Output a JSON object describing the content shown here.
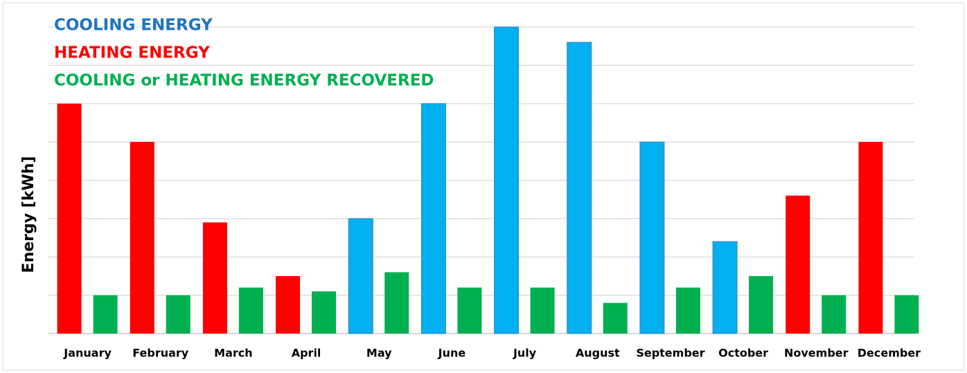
{
  "chart_data": {
    "type": "bar",
    "y_label": "Energy [kWh]",
    "categories": [
      "January",
      "February",
      "March",
      "April",
      "May",
      "June",
      "July",
      "August",
      "September",
      "October",
      "November",
      "December"
    ],
    "series": [
      {
        "name": "COOLING ENERGY",
        "color": "#00b0f0",
        "label_color": "#1f73c0",
        "values": [
          null,
          null,
          null,
          null,
          3,
          6,
          8,
          7.6,
          5,
          2.4,
          null,
          null
        ]
      },
      {
        "name": "HEATING ENERGY",
        "color": "#ff0000",
        "label_color": "#ff0000",
        "values": [
          6,
          5,
          2.9,
          1.5,
          null,
          null,
          null,
          null,
          null,
          null,
          3.6,
          5
        ]
      },
      {
        "name": "COOLING or HEATING ENERGY RECOVERED",
        "color": "#00b050",
        "label_color": "#00b050",
        "values": [
          1,
          1,
          1.2,
          1.1,
          1.6,
          1.2,
          1.2,
          0.8,
          1.2,
          1.5,
          1,
          1
        ]
      }
    ],
    "ylim": [
      0,
      8
    ],
    "yticks": [
      0,
      1,
      2,
      3,
      4,
      5,
      6,
      7,
      8
    ],
    "grid": true
  }
}
